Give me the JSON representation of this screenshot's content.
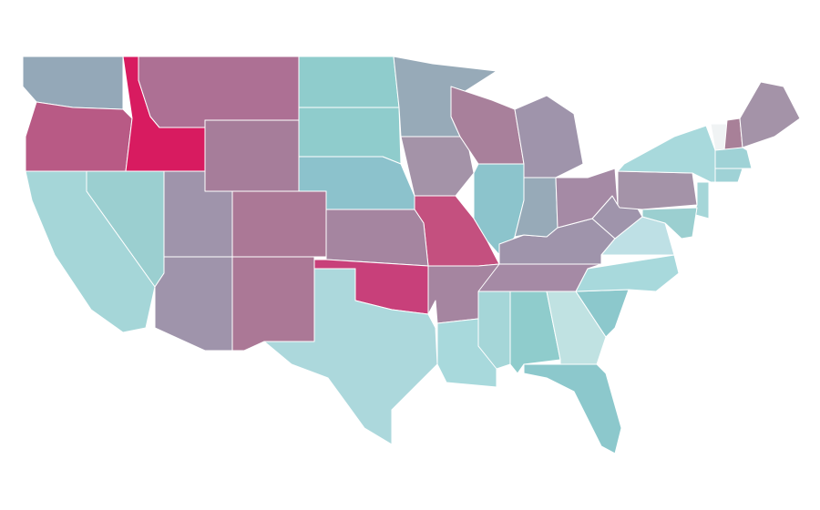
{
  "map": {
    "fills": [
      "#94a8b8",
      "#b85a85",
      "#d81b60",
      "#ad7094",
      "#a67d9a",
      "#8fcccc",
      "#8fcccc",
      "#8cc2cc",
      "#97aab8",
      "#a493a8",
      "#a8809b",
      "#8cc4cc",
      "#c4507f",
      "#a585a0",
      "#ab7896",
      "#9f94ab",
      "#9bcfd0",
      "#a5d6d8",
      "#9f94ab",
      "#ab7896",
      "#c8407a",
      "#acd8dc",
      "#a585a0",
      "#a8d9dc",
      "#a5d6d8",
      "#8fcccc",
      "#c0e2e2",
      "#8cc8cc",
      "#8cc8cc",
      "#a8d9dc",
      "#a58aa5",
      "#9f94ab",
      "#bee0e5",
      "#9f94ab",
      "#97aab8",
      "#a58aa5",
      "#9f94ab",
      "#a493a8",
      "#a8d9dc",
      "#f0f3f4",
      "#a88098",
      "#a493a8",
      "#9fd2d6",
      "#9fd2d6",
      "#a5d6d8",
      "#9bcfd0"
    ]
  }
}
